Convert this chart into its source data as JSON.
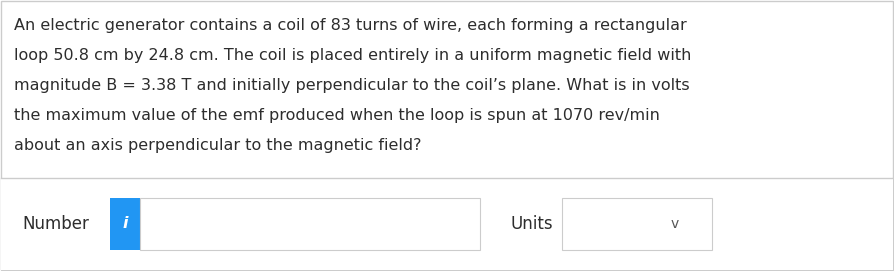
{
  "background_color": "#ffffff",
  "text_color": "#2d2d2d",
  "lines": [
    "An electric generator contains a coil of 83 turns of wire, each forming a rectangular",
    "loop 50.8 cm by 24.8 cm. The coil is placed entirely in a uniform magnetic field with",
    "magnitude B = 3.38 T and initially perpendicular to the coil’s plane. What is in volts",
    "the maximum value of the emf produced when the loop is spun at 1070 rev/min",
    "about an axis perpendicular to the magnetic field?"
  ],
  "number_label": "Number",
  "units_label": "Units",
  "info_button_color": "#2196f3",
  "info_button_text": "i",
  "outer_border_color": "#cccccc",
  "divider_color": "#cccccc",
  "bottom_section_bg": "#ffffff",
  "input_box_border": "#cccccc",
  "dropdown_border": "#cccccc",
  "chevron": "v",
  "font_size_text": 11.5,
  "font_size_labels": 12.0,
  "font_size_info": 11.5,
  "font_size_chevron": 10.0,
  "fig_width": 8.94,
  "fig_height": 2.71,
  "dpi": 100
}
